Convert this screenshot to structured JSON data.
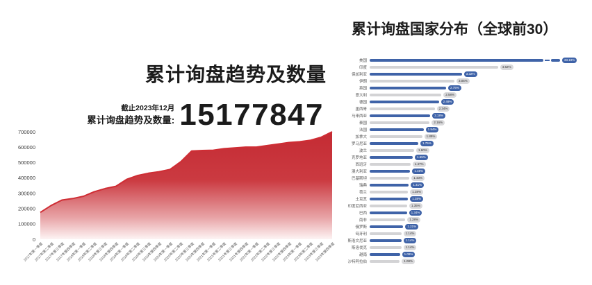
{
  "left_chart": {
    "title": "累计询盘趋势及数量",
    "annotation": {
      "asof": "截止2023年12月",
      "total_label": "累计询盘趋势及数量:",
      "total_value": "15177847"
    }
  },
  "right_chart": {
    "title": "累计询盘国家分布（全球前30）"
  },
  "colors": {
    "red_line": "#cf2d34",
    "red_fill_top": "#c42b33",
    "blue_bar": "#3f63a8",
    "gray_bar": "#d3d3d5"
  },
  "chart_data": [
    {
      "type": "area",
      "title": "累计询盘趋势及数量",
      "annotation": {
        "asof": "截止2023年12月",
        "total_label": "累计询盘趋势及数量:",
        "total_value": "15177847"
      },
      "x": [
        "2017年第一季度",
        "2017年第二季度",
        "2017年第三季度",
        "2017年第四季度",
        "2018年第一季度",
        "2018年第二季度",
        "2018年第三季度",
        "2018年第四季度",
        "2019年第一季度",
        "2019年第二季度",
        "2019年第三季度",
        "2019年第四季度",
        "2020年第一季度",
        "2020年第二季度",
        "2020年第三季度",
        "2020年第四季度",
        "2021年第一季度",
        "2021年第二季度",
        "2021年第三季度",
        "2021年第四季度",
        "2022年第一季度",
        "2022年第二季度",
        "2022年第三季度",
        "2022年第四季度",
        "2023年第一季度",
        "2023年第二季度",
        "2023年第三季度",
        "2023年第四季度"
      ],
      "values": [
        175000,
        220000,
        255000,
        265000,
        280000,
        310000,
        330000,
        345000,
        390000,
        415000,
        430000,
        440000,
        455000,
        505000,
        575000,
        578000,
        580000,
        590000,
        595000,
        600000,
        600000,
        610000,
        620000,
        630000,
        635000,
        645000,
        665000,
        700000
      ],
      "ylim": [
        0,
        700000
      ],
      "yticks": [
        0,
        100000,
        200000,
        300000,
        400000,
        500000,
        600000,
        700000
      ],
      "grid": false,
      "legend": false
    },
    {
      "type": "bar",
      "orientation": "horizontal",
      "title": "累计询盘国家分布（全球前30）",
      "categories": [
        "美国",
        "印度",
        "保加利亚",
        "伊朗",
        "英国",
        "意大利",
        "德国",
        "墨西哥",
        "马来西亚",
        "泰国",
        "法国",
        "加拿大",
        "罗马尼亚",
        "波兰",
        "克罗地亚",
        "西班牙",
        "澳大利亚",
        "巴基斯坦",
        "瑞典",
        "荷兰",
        "土耳其",
        "印度尼西亚",
        "巴西",
        "南非",
        "俄罗斯",
        "匈牙利",
        "斯洛文尼亚",
        "斯洛伐克",
        "越南",
        "沙特阿拉伯"
      ],
      "values": [
        33.19,
        4.62,
        3.32,
        3.05,
        2.75,
        2.58,
        2.49,
        2.34,
        2.18,
        2.16,
        1.94,
        1.89,
        1.75,
        1.6,
        1.55,
        1.47,
        1.46,
        1.43,
        1.41,
        1.38,
        1.38,
        1.35,
        1.34,
        1.28,
        1.21,
        1.14,
        1.14,
        1.14,
        1.09,
        1.08
      ],
      "labels": [
        "33.19%",
        "4.62%",
        "3.32%",
        "3.05%",
        "2.75%",
        "2.58%",
        "2.49%",
        "2.34%",
        "2.18%",
        "2.16%",
        "1.94%",
        "1.89%",
        "1.75%",
        "1.60%",
        "1.55%",
        "1.47%",
        "1.46%",
        "1.43%",
        "1.41%",
        "1.38%",
        "1.38%",
        "1.35%",
        "1.34%",
        "1.28%",
        "1.21%",
        "1.14%",
        "1.14%",
        "1.14%",
        "1.09%",
        "1.08%"
      ],
      "axis_break_category": "美国",
      "bar_color_alternation": [
        "#3f63a8",
        "#d3d3d5"
      ],
      "legend": false,
      "grid": false
    }
  ]
}
